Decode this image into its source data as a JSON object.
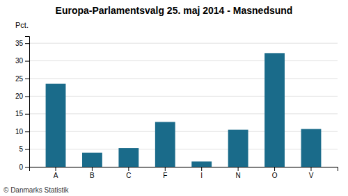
{
  "chart_data": {
    "type": "bar",
    "title": "Europa-Parlamentsvalg 25. maj 2014 - Masnedsund",
    "categories": [
      "A",
      "B",
      "C",
      "F",
      "I",
      "N",
      "O",
      "V"
    ],
    "values": [
      23.5,
      4.0,
      5.3,
      12.7,
      1.5,
      10.5,
      32.2,
      10.7
    ],
    "color": "#1a6b8a",
    "ylabel": "Pct.",
    "ylim": [
      0,
      37
    ],
    "yticks": [
      0,
      5,
      10,
      15,
      20,
      25,
      30,
      35
    ],
    "grid": true,
    "footer": "© Danmarks Statistik"
  }
}
